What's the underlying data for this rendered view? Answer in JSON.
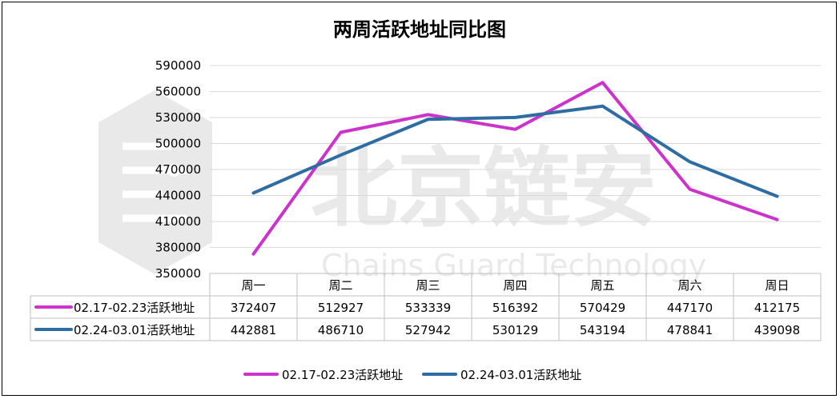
{
  "chart_data": {
    "type": "line",
    "title": "两周活跃地址同比图",
    "categories": [
      "周一",
      "周二",
      "周三",
      "周四",
      "周五",
      "周六",
      "周日"
    ],
    "series": [
      {
        "name": "02.17-02.23活跃地址",
        "color": "#CC33CC",
        "values": [
          372407,
          512927,
          533339,
          516392,
          570429,
          447170,
          412175
        ],
        "display": [
          "372407",
          "512927",
          "533339",
          "516392",
          "570429",
          "447170",
          "412175"
        ]
      },
      {
        "name": "02.24-03.01活跃地址",
        "color": "#2E6DA4",
        "values": [
          442881,
          486710,
          527942,
          530129,
          543194,
          478841,
          439098
        ],
        "display": [
          "442881",
          "486710",
          "527942",
          "530129",
          "543194",
          "478841",
          "439098"
        ]
      }
    ],
    "ylim": [
      350000,
      590000
    ],
    "yticks": [
      "350000",
      "380000",
      "410000",
      "440000",
      "470000",
      "500000",
      "530000",
      "560000",
      "590000"
    ],
    "grid": true,
    "legend": "bottom",
    "watermark": {
      "main": "北京链安",
      "sub": "Chains Guard Technology"
    }
  }
}
